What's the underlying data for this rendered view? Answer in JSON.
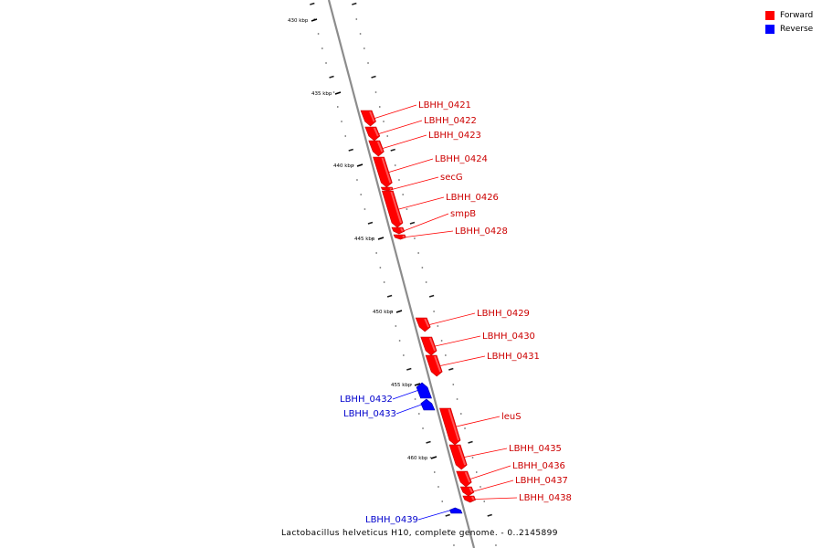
{
  "legend": {
    "forward_label": "Forward",
    "reverse_label": "Reverse",
    "forward_color": "#ff0000",
    "reverse_color": "#0000ff"
  },
  "caption": "Lactobacillus helveticus H10, complete genome. - 0..2145899",
  "scale_labels": [
    "430 kbp",
    "435 kbp",
    "440 kbp",
    "445 kbp",
    "450 kbp",
    "455 kbp",
    "460 kbp"
  ],
  "genes": [
    {
      "name": "LBHH_0421",
      "strand": "forward"
    },
    {
      "name": "LBHH_0422",
      "strand": "forward"
    },
    {
      "name": "LBHH_0423",
      "strand": "forward"
    },
    {
      "name": "LBHH_0424",
      "strand": "forward"
    },
    {
      "name": "secG",
      "strand": "forward"
    },
    {
      "name": "LBHH_0426",
      "strand": "forward"
    },
    {
      "name": "smpB",
      "strand": "forward"
    },
    {
      "name": "LBHH_0428",
      "strand": "forward"
    },
    {
      "name": "LBHH_0429",
      "strand": "forward"
    },
    {
      "name": "LBHH_0430",
      "strand": "forward"
    },
    {
      "name": "LBHH_0431",
      "strand": "forward"
    },
    {
      "name": "LBHH_0432",
      "strand": "reverse"
    },
    {
      "name": "LBHH_0433",
      "strand": "reverse"
    },
    {
      "name": "leuS",
      "strand": "forward"
    },
    {
      "name": "LBHH_0435",
      "strand": "forward"
    },
    {
      "name": "LBHH_0436",
      "strand": "forward"
    },
    {
      "name": "LBHH_0437",
      "strand": "forward"
    },
    {
      "name": "LBHH_0438",
      "strand": "forward"
    },
    {
      "name": "LBHH_0439",
      "strand": "reverse"
    }
  ]
}
